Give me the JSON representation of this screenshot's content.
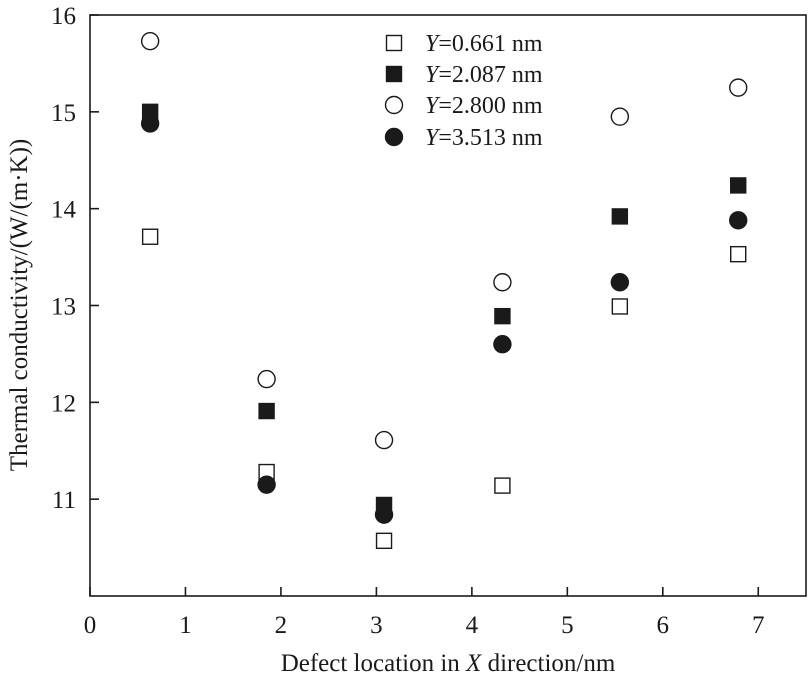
{
  "chart_data": {
    "type": "scatter",
    "title": "",
    "xlabel": "Defect location in X direction/nm",
    "xlabel_italic": "X",
    "ylabel": "Thermal conductivity/(W/(m·K))",
    "xlim": [
      0,
      7.5
    ],
    "ylim": [
      10,
      16
    ],
    "xticks": [
      0,
      1,
      2,
      3,
      4,
      5,
      6,
      7
    ],
    "yticks": [
      11,
      12,
      13,
      14,
      15,
      16
    ],
    "grid": false,
    "legend_position": "top-center",
    "x": [
      0.63,
      1.85,
      3.08,
      4.32,
      5.55,
      6.79
    ],
    "series": [
      {
        "name": "Y=0.661 nm",
        "marker": "square",
        "filled": false,
        "color": "#1a1a1a",
        "values": [
          13.71,
          11.28,
          10.57,
          11.14,
          12.99,
          13.53
        ]
      },
      {
        "name": "Y=2.087 nm",
        "marker": "square",
        "filled": true,
        "color": "#1a1a1a",
        "values": [
          15.0,
          11.91,
          10.94,
          12.89,
          13.92,
          14.24
        ]
      },
      {
        "name": "Y=2.800 nm",
        "marker": "circle",
        "filled": false,
        "color": "#1a1a1a",
        "values": [
          15.73,
          12.24,
          11.61,
          13.24,
          14.95,
          15.25
        ]
      },
      {
        "name": "Y=3.513 nm",
        "marker": "circle",
        "filled": true,
        "color": "#1a1a1a",
        "values": [
          14.88,
          11.15,
          10.84,
          12.6,
          13.24,
          13.88
        ]
      }
    ]
  }
}
